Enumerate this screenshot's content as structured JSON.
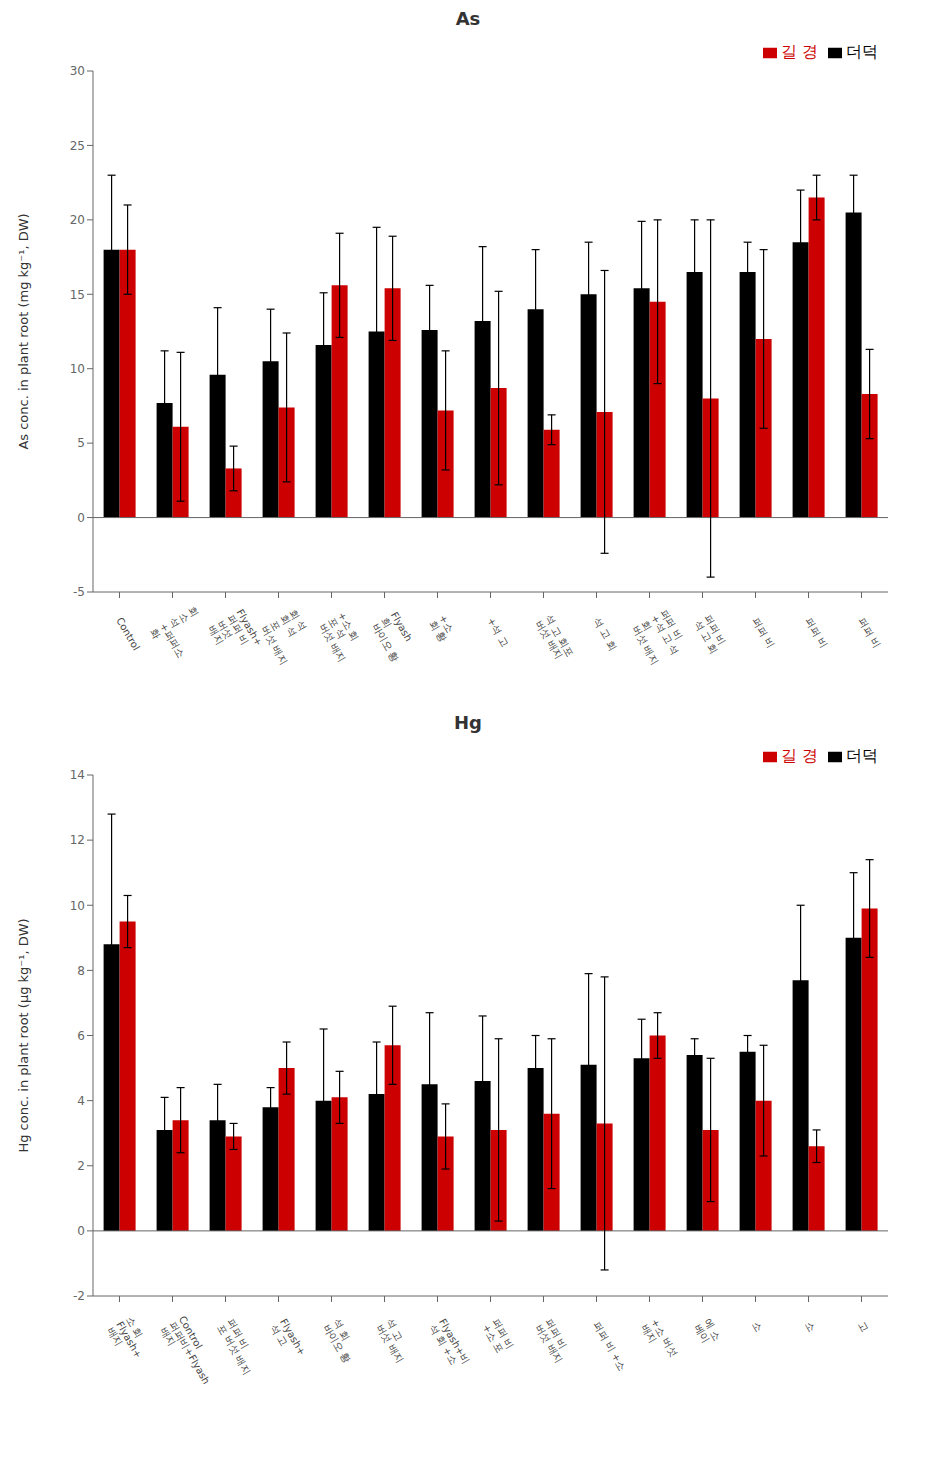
{
  "chart_data": [
    {
      "type": "bar",
      "title": "As",
      "y_label": "As conc. in plant root (mg kg⁻¹, DW)",
      "categories": [
        "Control",
        "회\n소\n석\n+퍼퍼소\n화",
        "Flyash+\n퍼퍼 비\n버섯\n배지",
        "회 석\n회 석\n포\n버섯 배지",
        "+소 회\n포 석\n버섯 배지",
        "Flyash\n희\n바이오 황",
        "+소\n회 황",
        "+석 고",
        "석 고 회포\n버섯 배지",
        "석 고 회",
        "퍼퍼 비\n+석 고 석\n회\n버섯 배지",
        "퍼퍼 비\n석 고 회",
        "퍼퍼 비",
        "퍼퍼 비",
        "퍼퍼 비"
      ],
      "series": [
        {
          "name": "더덕",
          "color": "#000000",
          "values": [
            18.0,
            7.7,
            9.6,
            10.5,
            11.6,
            12.5,
            12.6,
            13.2,
            14.0,
            15.0,
            15.4,
            16.5,
            16.5,
            18.5,
            20.5
          ],
          "errors": [
            5.0,
            3.5,
            4.5,
            3.5,
            3.5,
            7.0,
            3.0,
            5.0,
            4.0,
            3.5,
            4.5,
            3.5,
            2.0,
            3.5,
            2.5
          ]
        },
        {
          "name": "길 경",
          "color": "#cc0000",
          "values": [
            18.0,
            6.1,
            3.3,
            7.4,
            15.6,
            15.4,
            7.2,
            8.7,
            5.9,
            7.1,
            14.5,
            8.0,
            12.0,
            21.5,
            8.3
          ],
          "errors": [
            3.0,
            5.0,
            1.5,
            5.0,
            3.5,
            3.5,
            4.0,
            6.5,
            1.0,
            9.5,
            5.5,
            12.0,
            6.0,
            1.5,
            3.0
          ]
        }
      ],
      "ylim": [
        -5,
        30
      ],
      "yticks": [
        -5,
        0,
        5,
        10,
        15,
        20,
        25,
        30
      ],
      "legend": "upper right",
      "grid": false
    },
    {
      "type": "bar",
      "title": "Hg",
      "y_label": "Hg conc. in plant root (μg kg⁻¹, DW)",
      "categories": [
        "소 회\nFlyash+\n배지",
        "Control\n퍼퍼비+Flyash\n배지",
        "퍼퍼 비\n포 버섯 배지",
        "Flyash+\n석 고",
        "석 회\n바이오 황",
        "석 고\n버섯 배지",
        "Flyash+비\n석 회 +소",
        "퍼퍼 비\n+소 포",
        "퍼퍼 비\n버섯 배지",
        "퍼퍼 비 +소",
        "+소 버섯\n배지",
        "에 소\n베이",
        "소",
        "소",
        "고"
      ],
      "series": [
        {
          "name": "더덕",
          "color": "#000000",
          "values": [
            8.8,
            3.1,
            3.4,
            3.8,
            4.0,
            4.2,
            4.5,
            4.6,
            5.0,
            5.1,
            5.3,
            5.4,
            5.5,
            7.7,
            9.0
          ],
          "errors": [
            4.0,
            1.0,
            1.1,
            0.6,
            2.2,
            1.6,
            2.2,
            2.0,
            1.0,
            2.8,
            1.2,
            0.5,
            0.5,
            2.3,
            2.0
          ]
        },
        {
          "name": "길 경",
          "color": "#cc0000",
          "values": [
            9.5,
            3.4,
            2.9,
            5.0,
            4.1,
            5.7,
            2.9,
            3.1,
            3.6,
            3.3,
            6.0,
            3.1,
            4.0,
            2.6,
            9.9
          ],
          "errors": [
            0.8,
            1.0,
            0.4,
            0.8,
            0.8,
            1.2,
            1.0,
            2.8,
            2.3,
            4.5,
            0.7,
            2.2,
            1.7,
            0.5,
            1.5
          ]
        }
      ],
      "ylim": [
        -2,
        14
      ],
      "yticks": [
        -2,
        0,
        2,
        4,
        6,
        8,
        10,
        12,
        14
      ],
      "legend": "upper right",
      "grid": false
    }
  ]
}
